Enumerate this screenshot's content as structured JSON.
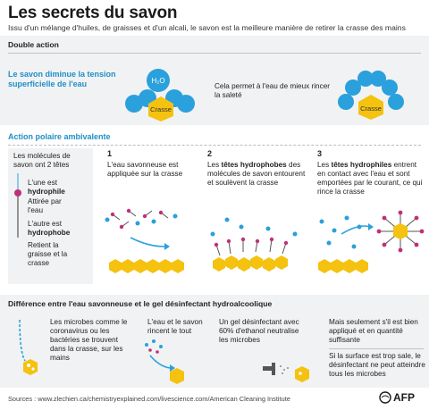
{
  "header": {
    "title": "Les secrets du savon",
    "subtitle": "Issu d'un mélange d'huiles, de graisses et d'un alcali, le savon est la meilleure manière de retirer la crasse des mains"
  },
  "double_action": {
    "heading": "Double action",
    "tension_label": "Le savon diminue la tension superficielle de l'eau",
    "h2o_label": "H₂O",
    "crasse_label_1": "Crasse",
    "rinse_text": "Cela permet à l'eau de mieux rincer la saleté",
    "crasse_label_2": "Crasse"
  },
  "polar": {
    "heading": "Action polaire ambivalente",
    "molecule_intro": "Les molécules de savon ont 2 têtes",
    "hydrophile_pre": "L'une est",
    "hydrophile_word": "hydrophile",
    "hydrophile_desc": "Attirée par l'eau",
    "hydrophobe_pre": "L'autre est",
    "hydrophobe_word": "hydrophobe",
    "hydrophobe_desc": "Retient la graisse et la crasse",
    "steps": [
      {
        "num": "1",
        "text": "L'eau savonneuse est appliquée sur la crasse"
      },
      {
        "num": "2",
        "pre": "Les",
        "bold": "têtes hydrophobes",
        "post": "des molécules de savon entourent et soulèvent la crasse"
      },
      {
        "num": "3",
        "pre": "Les",
        "bold": "têtes hydrophiles",
        "post": "entrent en contact avec l'eau et sont emportées par le courant, ce qui rince la crasse"
      }
    ]
  },
  "difference": {
    "heading": "Différence entre l'eau savonneuse et le gel désinfectant hydroalcoolique",
    "microbes_text": "Les microbes comme le coronavirus ou les bactéries se trouvent dans la crasse, sur les mains",
    "rinse_all": "L'eau et le savon rincent le tout",
    "gel_text": "Un gel désinfectant avec 60% d'ethanol neutralise les microbes",
    "condition_text": "Mais seulement s'il est bien appliqué et en quantité suffisante",
    "dirty_text": "Si la surface est trop sale, le désinfectant ne peut atteindre tous les microbes"
  },
  "footer": {
    "sources": "Sources : www.zlechien.ca/chemistryexplained.com/livescience.com/American Cleaning Institute",
    "agency": "AFP"
  },
  "colors": {
    "blue_water": "#2aa0dc",
    "dirt_yellow": "#f4c20f",
    "soap_pink": "#c0307a",
    "panel_grey": "#f1f2f3"
  }
}
